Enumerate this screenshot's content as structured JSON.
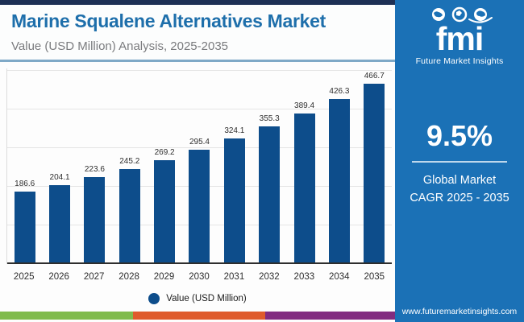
{
  "header": {
    "title": "Marine Squalene Alternatives Market",
    "subtitle": "Value (USD Million) Analysis, 2025-2035"
  },
  "chart_data": {
    "type": "bar",
    "title": "Marine Squalene Alternatives Market",
    "subtitle": "Value (USD Million) Analysis, 2025-2035",
    "categories": [
      "2025",
      "2026",
      "2027",
      "2028",
      "2029",
      "2030",
      "2031",
      "2032",
      "2033",
      "2034",
      "2035"
    ],
    "values": [
      186.6,
      204.1,
      223.6,
      245.2,
      269.2,
      295.4,
      324.1,
      355.3,
      389.4,
      426.3,
      466.7
    ],
    "series_name": "Value (USD Million)",
    "xlabel": "",
    "ylabel": "",
    "ylim": [
      0,
      500
    ],
    "gridline_step": 100,
    "grid": true,
    "data_labels": true,
    "legend_position": "bottom-center",
    "bar_color": "#0d4d8b"
  },
  "legend": {
    "label": "Value (USD Million)",
    "marker_color": "#0d4d8b"
  },
  "sidebar": {
    "logo": {
      "text": "fmi",
      "tagline": "Future Market Insights"
    },
    "stat_value": "9.5%",
    "stat_label_line1": "Global Market",
    "stat_label_line2": "CAGR 2025 - 2035",
    "website": "www.futuremarketinsights.com"
  },
  "colors": {
    "bar": "#0d4d8b",
    "sidebar_background": "#1b71b6",
    "top_strip": "#1d3055",
    "header_divider": "#7fa9c7",
    "title_text": "#1e6fab",
    "subtitle_text": "#7a7b7e",
    "footer_green": "#80bb4d",
    "footer_orange": "#df5b2c",
    "footer_purple": "#822c80"
  }
}
